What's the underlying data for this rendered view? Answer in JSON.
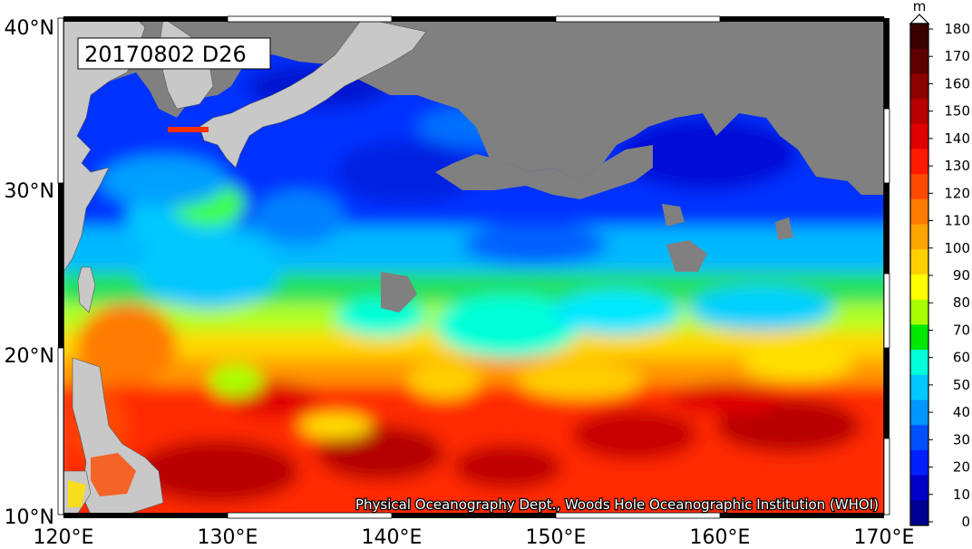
{
  "map": {
    "title": "20170802 D26",
    "credit": "Physical Oceanography Dept., Woods Hole Oceanographic Institution (WHOI)",
    "lon_labels": [
      "120°E",
      "130°E",
      "140°E",
      "150°E",
      "160°E",
      "170°E"
    ],
    "lat_labels": [
      "40°N",
      "30°N",
      "20°N",
      "10°N"
    ],
    "lon_range": [
      120,
      170
    ],
    "lat_range": [
      10,
      40
    ]
  },
  "colorbar": {
    "unit": "m",
    "ticks": [
      "180",
      "170",
      "160",
      "150",
      "140",
      "130",
      "120",
      "110",
      "100",
      "90",
      "80",
      "70",
      "60",
      "50",
      "40",
      "30",
      "20",
      "10",
      "0"
    ],
    "colors": [
      "#3a0000",
      "#5c0000",
      "#8c0000",
      "#b80000",
      "#e00000",
      "#ff1a00",
      "#ff4a00",
      "#ff7a00",
      "#ffa500",
      "#ffd000",
      "#ffff00",
      "#a8ff00",
      "#00e800",
      "#00ffd8",
      "#00c8ff",
      "#0096ff",
      "#0050ff",
      "#0020ff",
      "#0000c8",
      "#000090"
    ],
    "land_color": "#c8c8c8",
    "nodata_color": "#808080"
  }
}
